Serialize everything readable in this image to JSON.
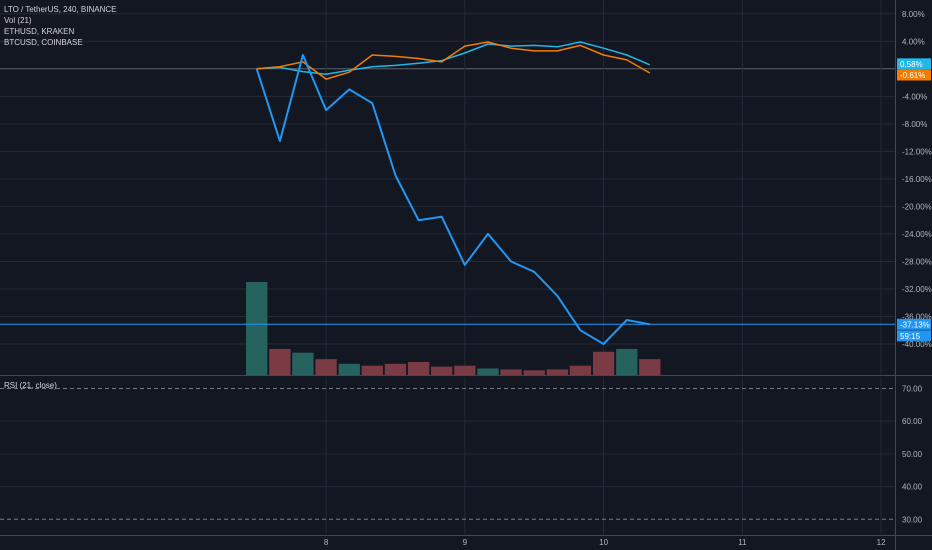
{
  "legend": {
    "main": "LTO / TetherUS, 240, BINANCE",
    "volume": "Vol (21)",
    "compare1": "ETHUSD, KRAKEN",
    "compare2": "BTCUSD, COINBASE"
  },
  "rsi_label": "RSI (21, close)",
  "colors": {
    "background": "#131722",
    "grid": "#262a36",
    "lto": "#2196f3",
    "eth": "#f57c00",
    "btc": "#21b7e6",
    "vol_up": "#26635e",
    "vol_down": "#7b3b44",
    "axis_text": "#b2b5be"
  },
  "chart_data": [
    {
      "type": "line",
      "title": "",
      "x_tick_labels": [
        "8",
        "9",
        "10",
        "11",
        "12"
      ],
      "y_tick_labels": [
        "8.00%",
        "4.00%",
        "0.00%",
        "-4.00%",
        "-8.00%",
        "-12.00%",
        "-16.00%",
        "-20.00%",
        "-24.00%",
        "-28.00%",
        "-32.00%",
        "-36.00%",
        "-40.00%"
      ],
      "y_ticks": [
        8,
        4,
        0,
        -4,
        -8,
        -12,
        -16,
        -20,
        -24,
        -28,
        -32,
        -36,
        -40
      ],
      "ylim": [
        -44.5,
        10
      ],
      "xlim": [
        5.65,
        12.1
      ],
      "x_ticks": [
        8,
        9,
        10,
        11,
        12
      ],
      "series": [
        {
          "key": "lto",
          "x": [
            7.5,
            7.667,
            7.833,
            8.0,
            8.167,
            8.333,
            8.5,
            8.667,
            8.833,
            9.0,
            9.167,
            9.333,
            9.5,
            9.667,
            9.833,
            10.0,
            10.167,
            10.333
          ],
          "values": [
            0.0,
            -10.5,
            2.0,
            -6.0,
            -3.0,
            -5.0,
            -15.5,
            -22.0,
            -21.5,
            -28.5,
            -24.0,
            -28.0,
            -29.5,
            -33.0,
            -38.0,
            -40.0,
            -36.5,
            -37.13
          ]
        },
        {
          "key": "eth",
          "x": [
            7.5,
            7.667,
            7.833,
            8.0,
            8.167,
            8.333,
            8.5,
            8.667,
            8.833,
            9.0,
            9.167,
            9.333,
            9.5,
            9.667,
            9.833,
            10.0,
            10.167,
            10.333
          ],
          "values": [
            0.0,
            0.3,
            1.0,
            -1.5,
            -0.5,
            2.0,
            1.8,
            1.5,
            1.0,
            3.3,
            3.9,
            3.0,
            2.6,
            2.6,
            3.4,
            2.0,
            1.3,
            -0.61
          ]
        },
        {
          "key": "btc",
          "x": [
            7.5,
            7.667,
            7.833,
            8.0,
            8.167,
            8.333,
            8.5,
            8.667,
            8.833,
            9.0,
            9.167,
            9.333,
            9.5,
            9.667,
            9.833,
            10.0,
            10.167,
            10.333
          ],
          "values": [
            0.0,
            0.2,
            -0.4,
            -0.8,
            -0.2,
            0.3,
            0.5,
            0.8,
            1.2,
            2.3,
            3.6,
            3.3,
            3.4,
            3.2,
            3.9,
            3.0,
            2.0,
            0.58
          ]
        }
      ],
      "last_value_labels": {
        "btc": "0.58%",
        "eth": "-0.61%",
        "lto": "-37.13%",
        "countdown": "59:15"
      }
    },
    {
      "type": "bar",
      "title": "Vol (21)",
      "x": [
        7.5,
        7.667,
        7.833,
        8.0,
        8.167,
        8.333,
        8.5,
        8.667,
        8.833,
        9.0,
        9.167,
        9.333,
        9.5,
        9.667,
        9.833,
        10.0,
        10.167,
        10.333
      ],
      "values": [
        100,
        28,
        24,
        17,
        12,
        10,
        12,
        14,
        9,
        10,
        7,
        6,
        5,
        6,
        10,
        25,
        28,
        17
      ],
      "direction": [
        "up",
        "down",
        "up",
        "down",
        "up",
        "down",
        "down",
        "down",
        "down",
        "down",
        "up",
        "down",
        "down",
        "down",
        "down",
        "down",
        "up",
        "down"
      ],
      "ylim": [
        0,
        100
      ]
    },
    {
      "type": "line",
      "title": "RSI (21, close)",
      "y_tick_labels": [
        "70.00",
        "60.00",
        "50.00",
        "40.00",
        "30.00"
      ],
      "y_ticks": [
        70,
        60,
        50,
        40,
        30
      ],
      "ylim": [
        25.5,
        73.5
      ],
      "bands": [
        70,
        30
      ]
    }
  ]
}
